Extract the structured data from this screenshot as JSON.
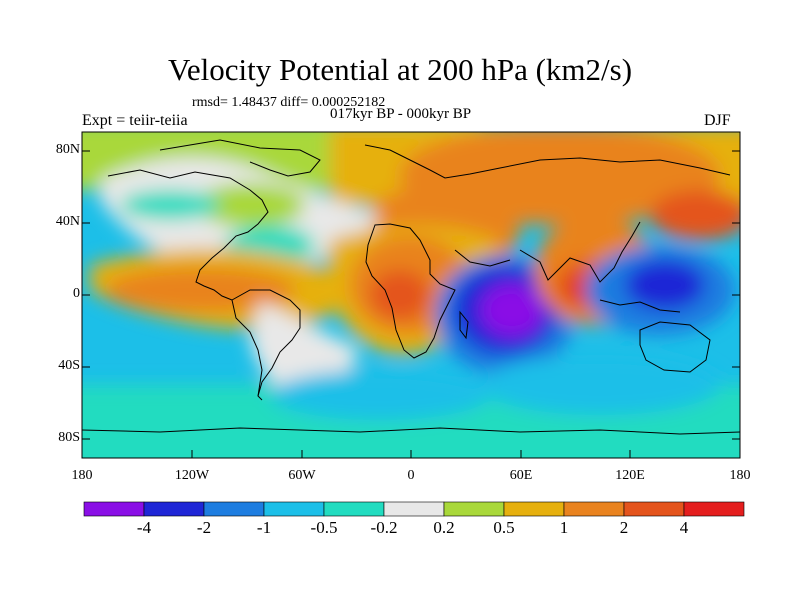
{
  "map": {
    "title": "Velocity Potential at 200 hPa (km2/s)",
    "stats_line": "rmsd= 1.48437 diff= 0.000252182",
    "period": "017kyr BP - 000kyr BP",
    "experiment": "Expt = teiir-teiia",
    "season": "DJF",
    "lat_labels": [
      "80N",
      "40N",
      "0",
      "40S",
      "80S"
    ],
    "lon_labels": [
      "180",
      "120W",
      "60W",
      "0",
      "60E",
      "120E",
      "180"
    ]
  },
  "colorbar": {
    "labels": [
      "-4",
      "-2",
      "-1",
      "-0.5",
      "-0.2",
      "0.2",
      "0.5",
      "1",
      "2",
      "4"
    ],
    "colors": [
      "#8a0fe6",
      "#1f26d6",
      "#1e7de0",
      "#1cbfe8",
      "#22dcc0",
      "#e8e8e8",
      "#a9d83a",
      "#e6b00e",
      "#e9831f",
      "#e4541d",
      "#e41e1e"
    ]
  }
}
